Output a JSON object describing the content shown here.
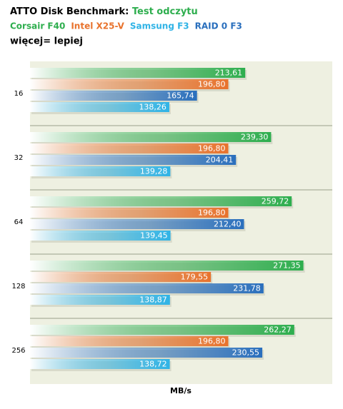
{
  "chart_data": {
    "type": "barh",
    "title": "ATTO Disk Benchmark:",
    "title_highlight": "Test odczytu",
    "subtitle": "więcej= lepiej",
    "x_label": "MB/s",
    "categories": [
      "16",
      "32",
      "64",
      "128",
      "256"
    ],
    "xlim": [
      0,
      300
    ],
    "series": [
      {
        "name": "Corsair F40",
        "color": "#2eae4e",
        "values": [
          213.61,
          239.3,
          259.72,
          271.35,
          262.27
        ],
        "value_labels": [
          "213,61",
          "239,30",
          "259,72",
          "271,35",
          "262,27"
        ]
      },
      {
        "name": "Intel X25-V",
        "color": "#e8722c",
        "values": [
          196.8,
          196.8,
          196.8,
          179.55,
          196.8
        ],
        "value_labels": [
          "196,80",
          "196,80",
          "196,80",
          "179,55",
          "196,80"
        ]
      },
      {
        "name": "Samsung F3",
        "color": "#2fb3e6",
        "values": [
          138.26,
          139.28,
          139.45,
          138.87,
          138.72
        ],
        "value_labels": [
          "138,26",
          "139,28",
          "139,45",
          "138,87",
          "138,72"
        ]
      },
      {
        "name": "RAID 0 F3",
        "color": "#2a6fbd",
        "values": [
          165.74,
          204.41,
          212.4,
          231.78,
          230.55
        ],
        "value_labels": [
          "165,74",
          "204,41",
          "212,40",
          "231,78",
          "230,55"
        ]
      }
    ]
  }
}
